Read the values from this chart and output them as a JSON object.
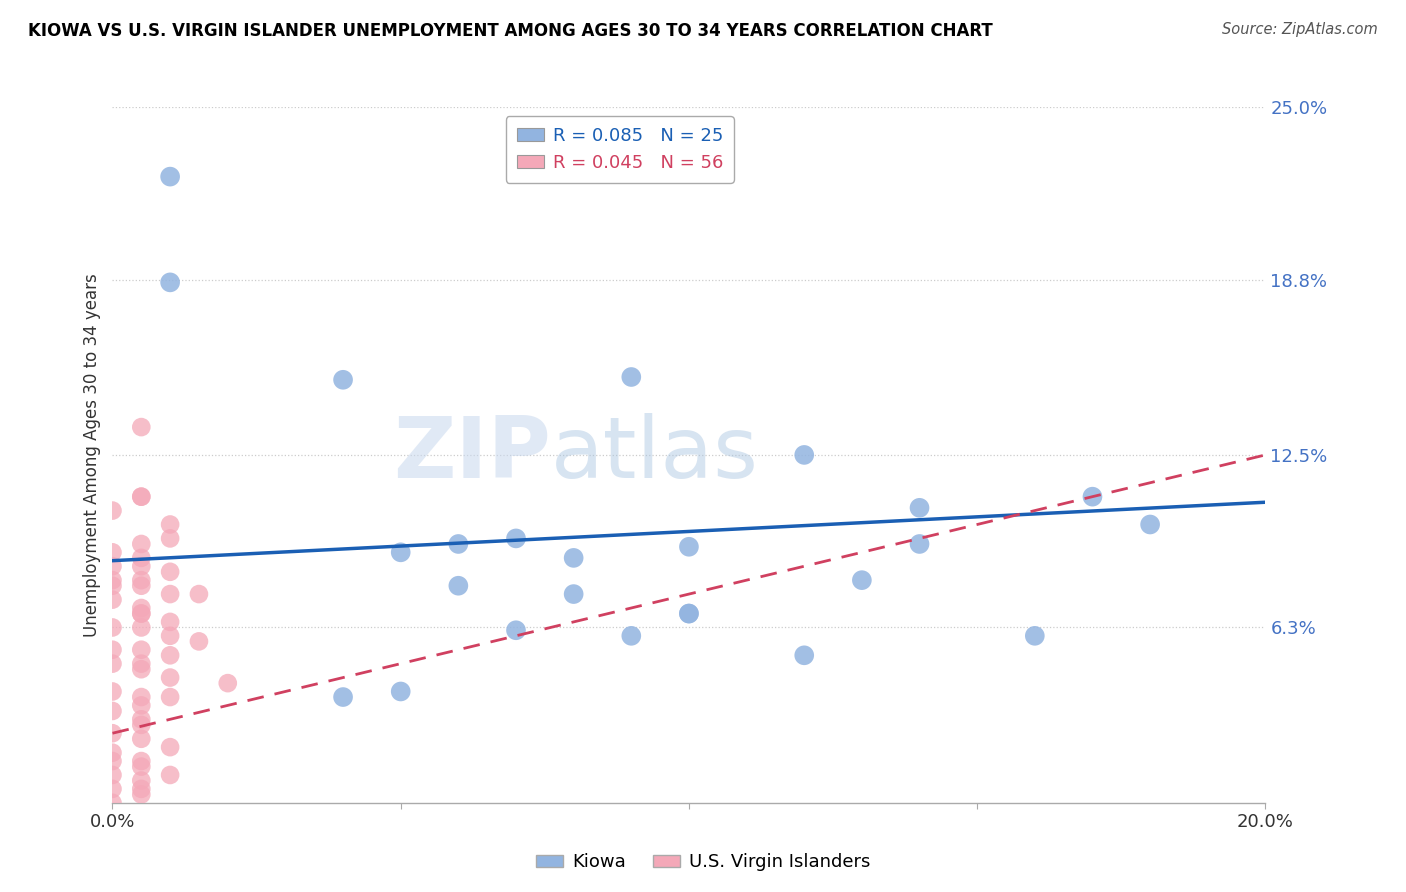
{
  "title": "KIOWA VS U.S. VIRGIN ISLANDER UNEMPLOYMENT AMONG AGES 30 TO 34 YEARS CORRELATION CHART",
  "source": "Source: ZipAtlas.com",
  "ylabel": "Unemployment Among Ages 30 to 34 years",
  "xlim": [
    0.0,
    0.2
  ],
  "ylim": [
    0.0,
    0.25
  ],
  "xticks": [
    0.0,
    0.05,
    0.1,
    0.15,
    0.2
  ],
  "xticklabels": [
    "0.0%",
    "",
    "",
    "",
    "20.0%"
  ],
  "ytick_positions": [
    0.063,
    0.125,
    0.188,
    0.25
  ],
  "ytick_labels": [
    "6.3%",
    "12.5%",
    "18.8%",
    "25.0%"
  ],
  "kiowa_R": 0.085,
  "kiowa_N": 25,
  "vi_R": 0.045,
  "vi_N": 56,
  "kiowa_color": "#92b4e0",
  "vi_color": "#f4a8b8",
  "kiowa_line_color": "#1a5fb4",
  "vi_line_color": "#d04060",
  "watermark_zip": "ZIP",
  "watermark_atlas": "atlas",
  "kiowa_x": [
    0.01,
    0.01,
    0.04,
    0.09,
    0.07,
    0.12,
    0.05,
    0.1,
    0.17,
    0.14,
    0.06,
    0.08,
    0.06,
    0.05,
    0.1,
    0.08,
    0.14,
    0.18,
    0.13,
    0.07,
    0.1,
    0.16,
    0.09,
    0.04,
    0.12
  ],
  "kiowa_y": [
    0.225,
    0.187,
    0.152,
    0.153,
    0.095,
    0.125,
    0.09,
    0.092,
    0.11,
    0.093,
    0.093,
    0.088,
    0.078,
    0.04,
    0.068,
    0.075,
    0.106,
    0.1,
    0.08,
    0.062,
    0.068,
    0.06,
    0.06,
    0.038,
    0.053
  ],
  "vi_x": [
    0.005,
    0.005,
    0.005,
    0.0,
    0.01,
    0.01,
    0.005,
    0.0,
    0.005,
    0.0,
    0.005,
    0.01,
    0.0,
    0.005,
    0.0,
    0.005,
    0.01,
    0.015,
    0.0,
    0.005,
    0.005,
    0.005,
    0.01,
    0.0,
    0.005,
    0.01,
    0.015,
    0.0,
    0.005,
    0.01,
    0.0,
    0.005,
    0.005,
    0.01,
    0.02,
    0.0,
    0.005,
    0.01,
    0.005,
    0.0,
    0.005,
    0.005,
    0.0,
    0.005,
    0.01,
    0.0,
    0.005,
    0.0,
    0.005,
    0.01,
    0.0,
    0.005,
    0.0,
    0.005,
    0.005,
    0.0
  ],
  "vi_y": [
    0.135,
    0.11,
    0.11,
    0.105,
    0.1,
    0.095,
    0.093,
    0.09,
    0.088,
    0.085,
    0.085,
    0.083,
    0.08,
    0.08,
    0.078,
    0.078,
    0.075,
    0.075,
    0.073,
    0.07,
    0.068,
    0.068,
    0.065,
    0.063,
    0.063,
    0.06,
    0.058,
    0.055,
    0.055,
    0.053,
    0.05,
    0.05,
    0.048,
    0.045,
    0.043,
    0.04,
    0.038,
    0.038,
    0.035,
    0.033,
    0.03,
    0.028,
    0.025,
    0.023,
    0.02,
    0.018,
    0.015,
    0.015,
    0.013,
    0.01,
    0.01,
    0.008,
    0.005,
    0.005,
    0.003,
    0.0
  ]
}
